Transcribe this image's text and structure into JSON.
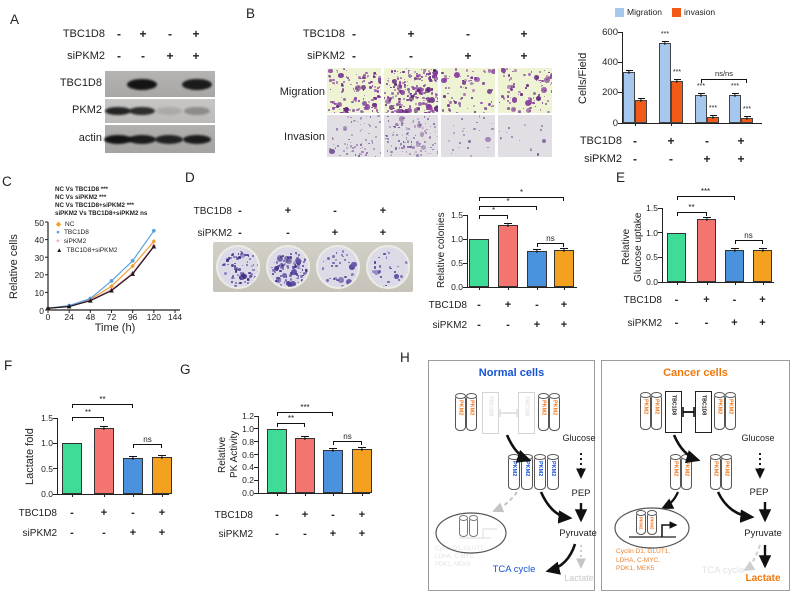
{
  "panels": {
    "A": {
      "label": "A",
      "cond_rows": [
        {
          "name": "TBC1D8",
          "values": [
            "-",
            "+",
            "-",
            "+"
          ]
        },
        {
          "name": "siPKM2",
          "values": [
            "-",
            "-",
            "+",
            "+"
          ]
        }
      ],
      "blots": [
        {
          "label": "TBC1D8",
          "bands": [
            0,
            1,
            0,
            0.95
          ]
        },
        {
          "label": "PKM2",
          "bands": [
            0.9,
            0.85,
            0.12,
            0.3
          ]
        },
        {
          "label": "actin",
          "bands": [
            1,
            0.95,
            0.9,
            0.95
          ]
        }
      ]
    },
    "B": {
      "label": "B",
      "cond_rows": [
        {
          "name": "TBC1D8",
          "values": [
            "-",
            "+",
            "-",
            "+"
          ]
        },
        {
          "name": "siPKM2",
          "values": [
            "-",
            "-",
            "+",
            "+"
          ]
        }
      ],
      "row_labels": [
        "Migration",
        "Invasion"
      ],
      "migration_density": [
        0.55,
        1,
        0.3,
        0.38
      ],
      "invasion_density": [
        0.35,
        0.55,
        0.12,
        0.07
      ]
    },
    "C": {
      "label": "C"
    },
    "D": {
      "label": "D",
      "cond_rows": [
        {
          "name": "TBC1D8",
          "values": [
            "-",
            "+",
            "-",
            "+"
          ]
        },
        {
          "name": "siPKM2",
          "values": [
            "-",
            "-",
            "+",
            "+"
          ]
        }
      ],
      "dish_density": [
        0.7,
        1,
        0.3,
        0.24
      ]
    },
    "E": {
      "label": "E"
    },
    "F": {
      "label": "F"
    },
    "G": {
      "label": "G"
    },
    "H": {
      "label": "H",
      "normal": {
        "title": "Normal cells",
        "title_color": "#1653d4",
        "pkm2_label": "PKM2",
        "tbc1d8_label": "TBC1D8",
        "glucose": "Glucose",
        "pep": "PEP",
        "pyruvate": "Pyruvate",
        "tca": "TCA cycle",
        "tca_color": "#1653d4",
        "lactate": "Lactate",
        "lactate_color": "#c9c9c9",
        "genes_lines": [
          "Cyclin D1, GLUT1,",
          "LDHA, C-MYC,",
          "PDK1, MEK5"
        ],
        "genes_color": "#e4e2e0"
      },
      "cancer": {
        "title": "Cancer cells",
        "title_color": "#f0780a",
        "pkm2_label": "PKM2",
        "tbc1d8_label": "TBC1D8",
        "glucose": "Glucose",
        "pep": "PEP",
        "pyruvate": "Pyruvate",
        "tca": "TCA cycle",
        "tca_color": "#e2e2e2",
        "lactate": "Lactate",
        "lactate_color": "#f0780a",
        "genes_lines": [
          "Cyclin D1, GLUT1,",
          "LDHA, C-MYC,",
          "PDK1, MEK5"
        ],
        "genes_color": "#f0842e"
      }
    }
  },
  "chart_data": [
    {
      "id": "cells_per_field",
      "type": "bar",
      "grouped": true,
      "ylabel": "Cells/Field",
      "ylim": [
        0,
        600
      ],
      "yticks": [
        0,
        200,
        400,
        600
      ],
      "tick_dec": 0,
      "legend_position": "top",
      "series": [
        {
          "name": "Migration",
          "color": "#a6c8ee",
          "values": [
            335,
            525,
            185,
            185
          ],
          "sig": [
            "",
            "***",
            "***",
            "***"
          ]
        },
        {
          "name": "invasion",
          "color": "#f25a17",
          "values": [
            150,
            275,
            42,
            35
          ],
          "sig": [
            "",
            "***",
            "***",
            "***"
          ]
        }
      ],
      "rows": [
        {
          "name": "TBC1D8",
          "values": [
            "-",
            "+",
            "-",
            "+"
          ]
        },
        {
          "name": "siPKM2",
          "values": [
            "-",
            "-",
            "+",
            "+"
          ]
        }
      ],
      "bracket": {
        "label": "ns/ns",
        "from": 2,
        "to": 3
      }
    },
    {
      "id": "growth_curve",
      "type": "line",
      "xlabel": "Time (h)",
      "ylabel": "Relative cells",
      "xlim": [
        0,
        144
      ],
      "ylim": [
        0,
        50
      ],
      "xticks": [
        0,
        24,
        48,
        72,
        96,
        120,
        144
      ],
      "yticks": [
        0,
        10,
        20,
        30,
        40,
        50
      ],
      "x": [
        0,
        24,
        48,
        72,
        96,
        120
      ],
      "series": [
        {
          "name": "NC",
          "color": "#f0a030",
          "marker": "diamond",
          "values": [
            1,
            2.3,
            6,
            13.5,
            25,
            39
          ]
        },
        {
          "name": "TBC1D8",
          "color": "#5aa2e0",
          "marker": "circle",
          "values": [
            1,
            2.5,
            6.5,
            16.5,
            28,
            45
          ]
        },
        {
          "name": "siPKM2",
          "color": "#ef7fae",
          "marker": "plus",
          "values": [
            1,
            2,
            5.5,
            11.5,
            21,
            36.5
          ]
        },
        {
          "name": "TBC1D8+siPKM2",
          "color": "#1a1a1a",
          "marker": "triangle",
          "values": [
            1,
            2,
            5.3,
            11,
            20.5,
            36
          ]
        }
      ],
      "stats": [
        "NC Vs TBC1D8  ***",
        "NC Vs siPKM2  ***",
        "NC Vs TBC1D8+siPKM2  ***",
        "siPKM2 Vs TBC1D8+siPKM2  ns"
      ],
      "legend_position": "inside top-left"
    },
    {
      "id": "relative_colonies",
      "type": "bar",
      "ylabel": "Relative colonies",
      "ylim": [
        0,
        1.5
      ],
      "yticks": [
        0,
        0.5,
        1,
        1.5
      ],
      "tick_dec": 1,
      "values": [
        1,
        1.3,
        0.75,
        0.77
      ],
      "errors": [
        0,
        0.05,
        0.03,
        0.04
      ],
      "bar_colors": [
        "#3edc96",
        "#f4756f",
        "#4b92de",
        "#f3a11f"
      ],
      "rows": [
        {
          "name": "TBC1D8",
          "values": [
            "-",
            "+",
            "-",
            "+"
          ]
        },
        {
          "name": "siPKM2",
          "values": [
            "-",
            "-",
            "+",
            "+"
          ]
        }
      ],
      "brackets": [
        {
          "from": 0,
          "to": 1,
          "label": "*"
        },
        {
          "from": 0,
          "to": 2,
          "label": "*"
        },
        {
          "from": 0,
          "to": 3,
          "label": "*"
        },
        {
          "from": 2,
          "to": 3,
          "label": "ns"
        }
      ]
    },
    {
      "id": "glucose_uptake",
      "type": "bar",
      "ylabel": "Relative Glucose uptake",
      "ylabel_lines": [
        "Relative",
        "Glucose uptake"
      ],
      "ylim": [
        0,
        1.5
      ],
      "yticks": [
        0,
        0.5,
        1,
        1.5
      ],
      "tick_dec": 1,
      "values": [
        1,
        1.27,
        0.65,
        0.65
      ],
      "errors": [
        0,
        0.02,
        0.02,
        0.02
      ],
      "bar_colors": [
        "#3edc96",
        "#f4756f",
        "#4b92de",
        "#f3a11f"
      ],
      "rows": [
        {
          "name": "TBC1D8",
          "values": [
            "-",
            "+",
            "-",
            "+"
          ]
        },
        {
          "name": "siPKM2",
          "values": [
            "-",
            "-",
            "+",
            "+"
          ]
        }
      ],
      "brackets": [
        {
          "from": 0,
          "to": 1,
          "label": "**"
        },
        {
          "from": 0,
          "to": 2,
          "label": "***"
        },
        {
          "from": 2,
          "to": 3,
          "label": "ns"
        }
      ]
    },
    {
      "id": "lactate_fold",
      "type": "bar",
      "ylabel": "Lactate fold",
      "ylim": [
        0,
        1.5
      ],
      "yticks": [
        0,
        0.5,
        1,
        1.5
      ],
      "tick_dec": 1,
      "values": [
        1,
        1.31,
        0.72,
        0.74
      ],
      "errors": [
        0,
        0.02,
        0.02,
        0.02
      ],
      "bar_colors": [
        "#3edc96",
        "#f4756f",
        "#4b92de",
        "#f3a11f"
      ],
      "rows": [
        {
          "name": "TBC1D8",
          "values": [
            "-",
            "+",
            "-",
            "+"
          ]
        },
        {
          "name": "siPKM2",
          "values": [
            "-",
            "-",
            "+",
            "+"
          ]
        }
      ],
      "brackets": [
        {
          "from": 0,
          "to": 1,
          "label": "**"
        },
        {
          "from": 0,
          "to": 2,
          "label": "**"
        },
        {
          "from": 2,
          "to": 3,
          "label": "ns"
        }
      ]
    },
    {
      "id": "pk_activity",
      "type": "bar",
      "ylabel": "Relative PK Activity",
      "ylabel_lines": [
        "Relative",
        "PK Activity"
      ],
      "ylim": [
        0,
        1.2
      ],
      "yticks": [
        0,
        0.2,
        0.4,
        0.6,
        0.8,
        1,
        1.2
      ],
      "tick_dec": 1,
      "values": [
        1,
        0.85,
        0.67,
        0.68
      ],
      "errors": [
        0,
        0.02,
        0.02,
        0.02
      ],
      "bar_colors": [
        "#3edc96",
        "#f4756f",
        "#4b92de",
        "#f3a11f"
      ],
      "rows": [
        {
          "name": "TBC1D8",
          "values": [
            "-",
            "+",
            "-",
            "+"
          ]
        },
        {
          "name": "siPKM2",
          "values": [
            "-",
            "-",
            "+",
            "+"
          ]
        }
      ],
      "brackets": [
        {
          "from": 0,
          "to": 1,
          "label": "**"
        },
        {
          "from": 0,
          "to": 2,
          "label": "***"
        },
        {
          "from": 2,
          "to": 3,
          "label": "ns"
        }
      ]
    }
  ]
}
